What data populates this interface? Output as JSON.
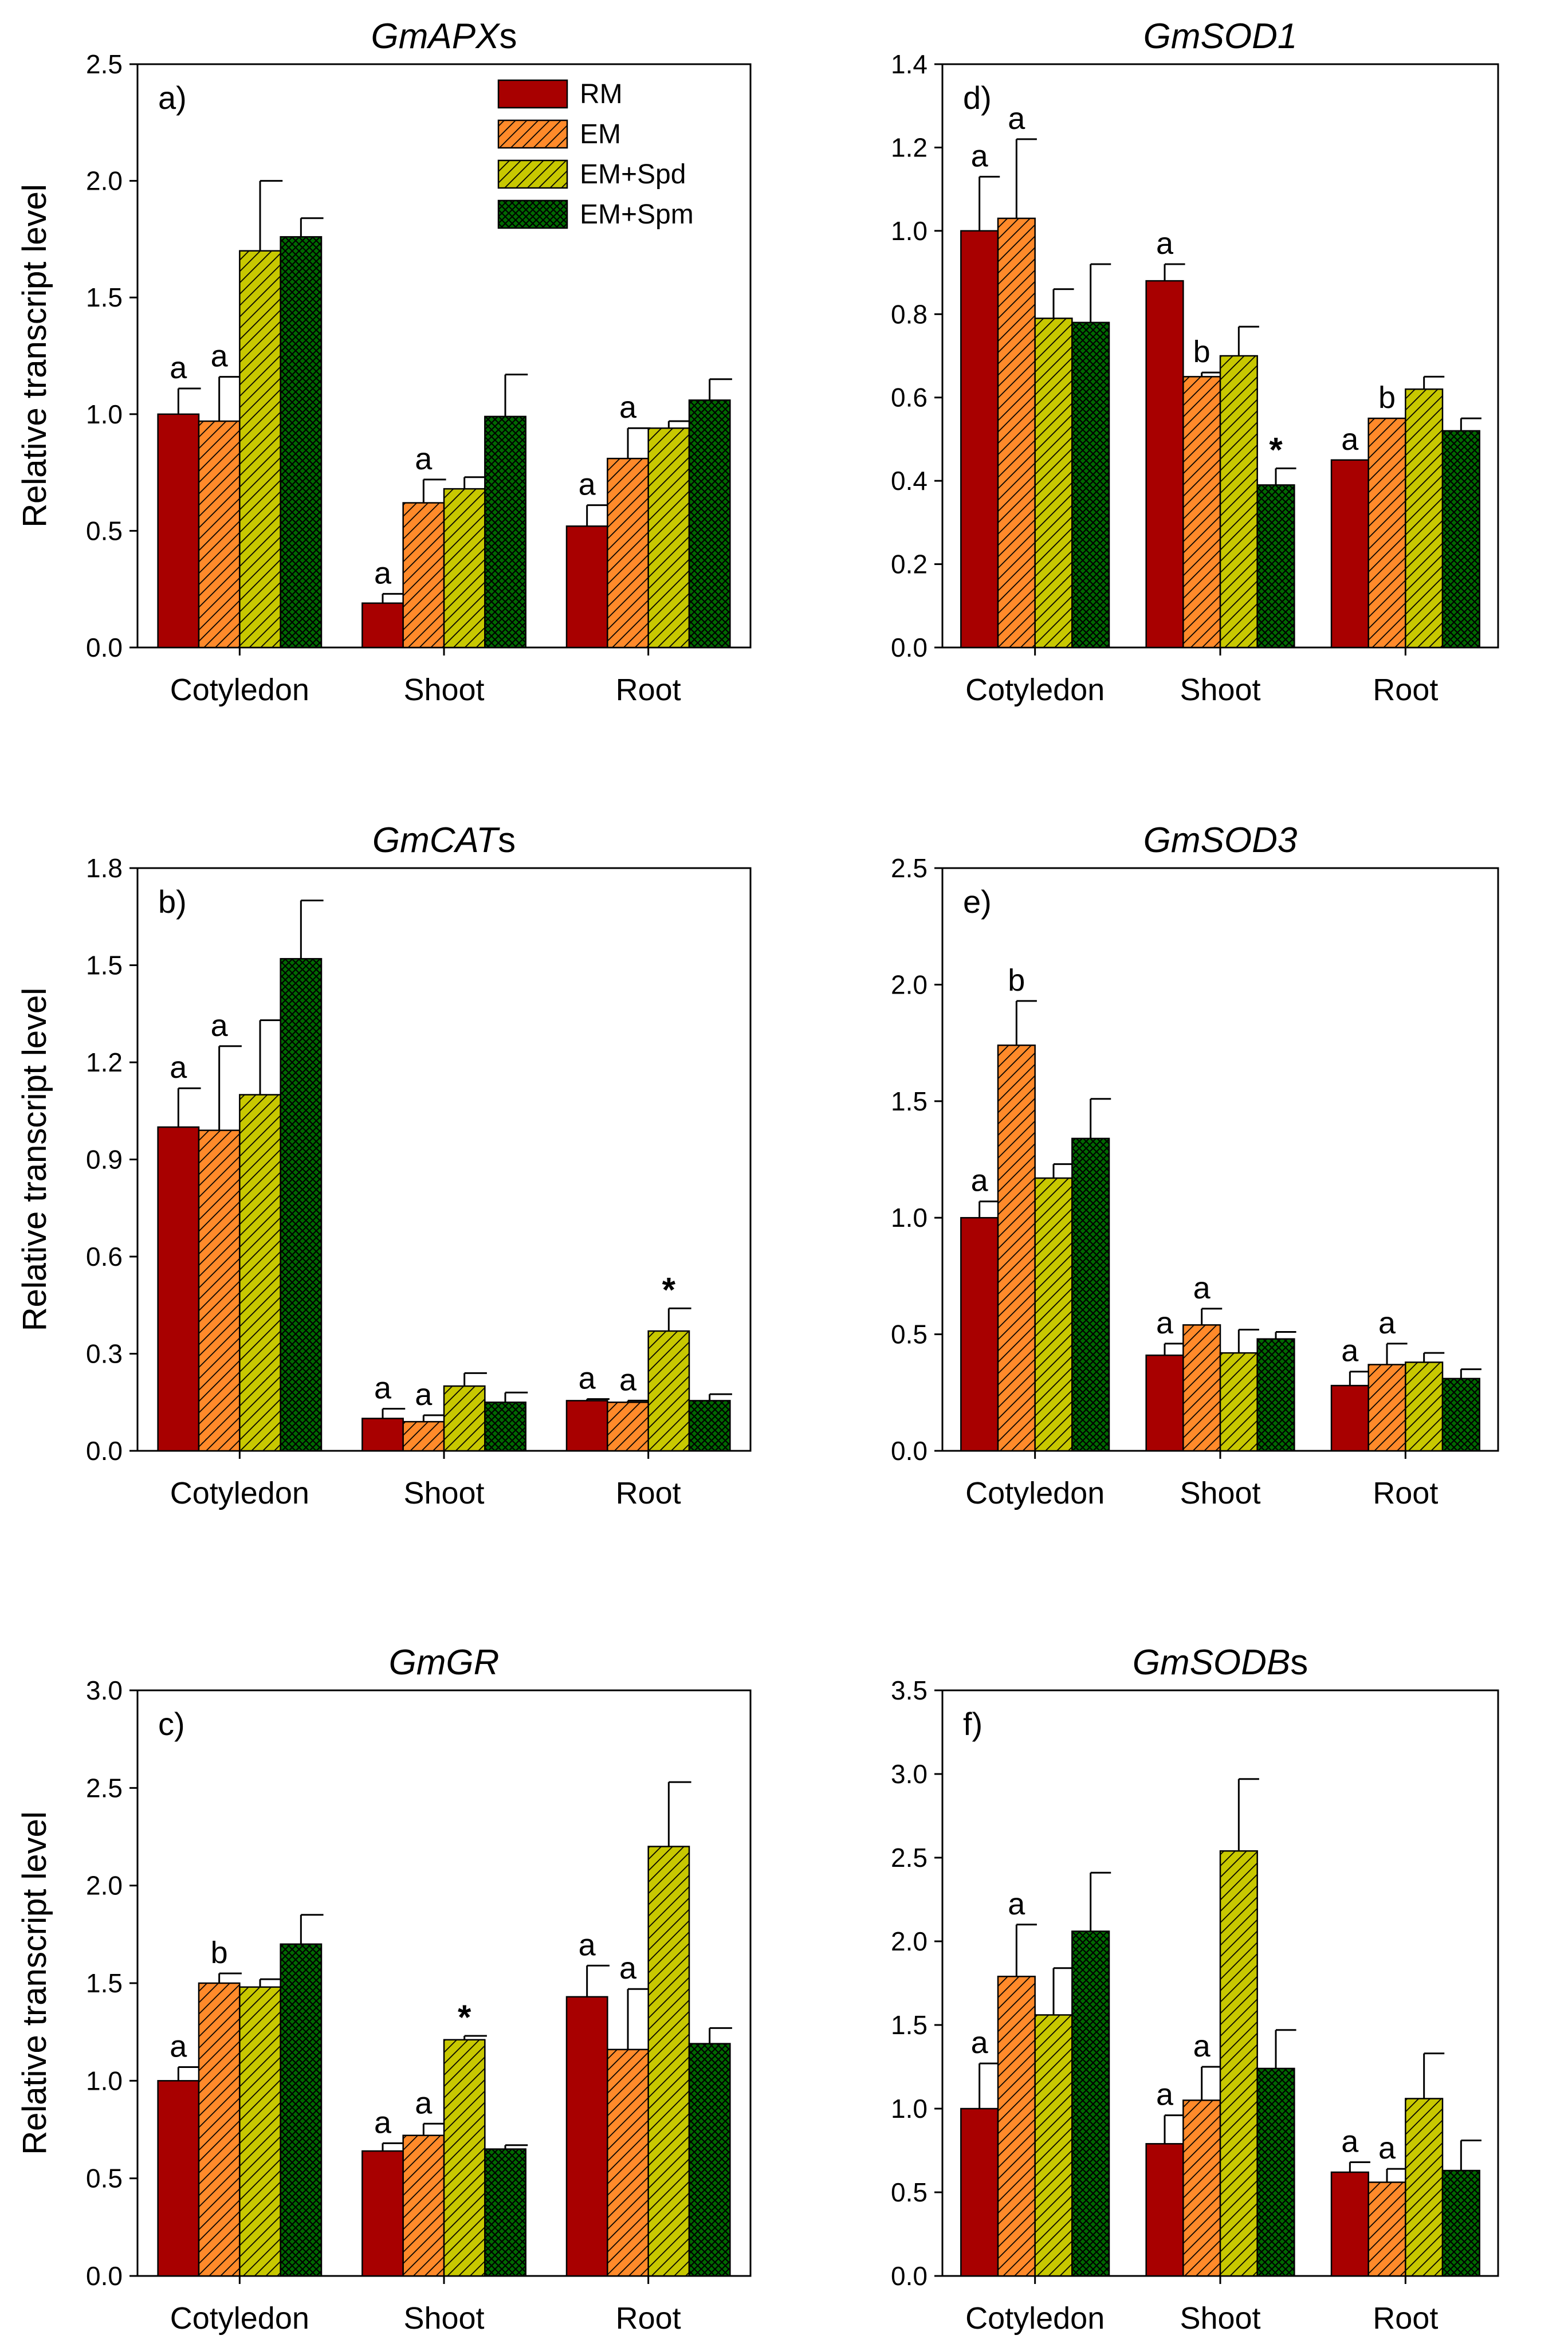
{
  "figure": {
    "ylabel": "Relative transcript level",
    "categories": [
      "Cotyledon",
      "Shoot",
      "Root"
    ],
    "legend": [
      {
        "name": "RM",
        "color": "#a80000",
        "pattern": "solid"
      },
      {
        "name": "EM",
        "color": "#ff8a2a",
        "pattern": "diag"
      },
      {
        "name": "EM+Spd",
        "color": "#c8c800",
        "pattern": "diag"
      },
      {
        "name": "EM+Spm",
        "color": "#006a00",
        "pattern": "cross"
      }
    ]
  },
  "chart_data": [
    {
      "type": "bar",
      "panel": "a)",
      "title_italic": "GmAPX",
      "title_suffix": "s",
      "categories": [
        "Cotyledon",
        "Shoot",
        "Root"
      ],
      "ylim": [
        0,
        2.5
      ],
      "yticks": [
        "0.0",
        "0.5",
        "1.0",
        "1.5",
        "2.0",
        "2.5"
      ],
      "series": [
        {
          "name": "RM",
          "values": [
            1.0,
            0.19,
            0.52
          ],
          "errors": [
            0.11,
            0.04,
            0.09
          ],
          "labels": [
            "a",
            "a",
            "a"
          ]
        },
        {
          "name": "EM",
          "values": [
            0.97,
            0.62,
            0.81
          ],
          "errors": [
            0.19,
            0.1,
            0.13
          ],
          "labels": [
            "a",
            "a",
            "a"
          ]
        },
        {
          "name": "EM+Spd",
          "values": [
            1.7,
            0.68,
            0.94
          ],
          "errors": [
            0.3,
            0.05,
            0.03
          ],
          "labels": [
            "",
            "",
            ""
          ]
        },
        {
          "name": "EM+Spm",
          "values": [
            1.76,
            0.99,
            1.06
          ],
          "errors": [
            0.08,
            0.18,
            0.09
          ],
          "labels": [
            "",
            "",
            ""
          ]
        }
      ]
    },
    {
      "type": "bar",
      "panel": "b)",
      "title_italic": "GmCAT",
      "title_suffix": "s",
      "categories": [
        "Cotyledon",
        "Shoot",
        "Root"
      ],
      "ylim": [
        0,
        1.8
      ],
      "yticks": [
        "0.0",
        "0.3",
        "0.6",
        "0.9",
        "1.2",
        "1.5",
        "1.8"
      ],
      "series": [
        {
          "name": "RM",
          "values": [
            1.0,
            0.1,
            0.155
          ],
          "errors": [
            0.12,
            0.03,
            0.005
          ],
          "labels": [
            "a",
            "a",
            "a"
          ]
        },
        {
          "name": "EM",
          "values": [
            0.99,
            0.09,
            0.15
          ],
          "errors": [
            0.26,
            0.02,
            0.005
          ],
          "labels": [
            "a",
            "a",
            "a"
          ]
        },
        {
          "name": "EM+Spd",
          "values": [
            1.1,
            0.2,
            0.37
          ],
          "errors": [
            0.23,
            0.04,
            0.07
          ],
          "labels": [
            "",
            "",
            "*"
          ]
        },
        {
          "name": "EM+Spm",
          "values": [
            1.52,
            0.15,
            0.155
          ],
          "errors": [
            0.18,
            0.03,
            0.02
          ],
          "labels": [
            "",
            "",
            ""
          ]
        }
      ]
    },
    {
      "type": "bar",
      "panel": "c)",
      "title_italic": "GmGR",
      "title_suffix": "",
      "categories": [
        "Cotyledon",
        "Shoot",
        "Root"
      ],
      "ylim": [
        0,
        3.0
      ],
      "yticks": [
        "0.0",
        "0.5",
        "1.0",
        "1.5",
        "2.0",
        "2.5",
        "3.0"
      ],
      "series": [
        {
          "name": "RM",
          "values": [
            1.0,
            0.64,
            1.43
          ],
          "errors": [
            0.07,
            0.04,
            0.16
          ],
          "labels": [
            "a",
            "a",
            "a"
          ]
        },
        {
          "name": "EM",
          "values": [
            1.5,
            0.72,
            1.16
          ],
          "errors": [
            0.05,
            0.06,
            0.31
          ],
          "labels": [
            "b",
            "a",
            "a"
          ]
        },
        {
          "name": "EM+Spd",
          "values": [
            1.48,
            1.21,
            2.2
          ],
          "errors": [
            0.04,
            0.02,
            0.33
          ],
          "labels": [
            "",
            "*",
            ""
          ]
        },
        {
          "name": "EM+Spm",
          "values": [
            1.7,
            0.65,
            1.19
          ],
          "errors": [
            0.15,
            0.02,
            0.08
          ],
          "labels": [
            "",
            "",
            ""
          ]
        }
      ]
    },
    {
      "type": "bar",
      "panel": "d)",
      "title_italic": "GmSOD1",
      "title_suffix": "",
      "categories": [
        "Cotyledon",
        "Shoot",
        "Root"
      ],
      "ylim": [
        0,
        1.4
      ],
      "yticks": [
        "0.0",
        "0.2",
        "0.4",
        "0.6",
        "0.8",
        "1.0",
        "1.2",
        "1.4"
      ],
      "series": [
        {
          "name": "RM",
          "values": [
            1.0,
            0.88,
            0.45
          ],
          "errors": [
            0.13,
            0.04,
            0.0
          ],
          "labels": [
            "a",
            "a",
            "a"
          ]
        },
        {
          "name": "EM",
          "values": [
            1.03,
            0.65,
            0.55
          ],
          "errors": [
            0.19,
            0.01,
            0.0
          ],
          "labels": [
            "a",
            "b",
            "b"
          ]
        },
        {
          "name": "EM+Spd",
          "values": [
            0.79,
            0.7,
            0.62
          ],
          "errors": [
            0.07,
            0.07,
            0.03
          ],
          "labels": [
            "",
            "",
            ""
          ]
        },
        {
          "name": "EM+Spm",
          "values": [
            0.78,
            0.39,
            0.52
          ],
          "errors": [
            0.14,
            0.04,
            0.03
          ],
          "labels": [
            "",
            "*",
            ""
          ]
        }
      ]
    },
    {
      "type": "bar",
      "panel": "e)",
      "title_italic": "GmSOD3",
      "title_suffix": "",
      "categories": [
        "Cotyledon",
        "Shoot",
        "Root"
      ],
      "ylim": [
        0,
        2.5
      ],
      "yticks": [
        "0.0",
        "0.5",
        "1.0",
        "1.5",
        "2.0",
        "2.5"
      ],
      "series": [
        {
          "name": "RM",
          "values": [
            1.0,
            0.41,
            0.28
          ],
          "errors": [
            0.07,
            0.05,
            0.06
          ],
          "labels": [
            "a",
            "a",
            "a"
          ]
        },
        {
          "name": "EM",
          "values": [
            1.74,
            0.54,
            0.37
          ],
          "errors": [
            0.19,
            0.07,
            0.09
          ],
          "labels": [
            "b",
            "a",
            "a"
          ]
        },
        {
          "name": "EM+Spd",
          "values": [
            1.17,
            0.42,
            0.38
          ],
          "errors": [
            0.06,
            0.1,
            0.04
          ],
          "labels": [
            "",
            "",
            ""
          ]
        },
        {
          "name": "EM+Spm",
          "values": [
            1.34,
            0.48,
            0.31
          ],
          "errors": [
            0.17,
            0.03,
            0.04
          ],
          "labels": [
            "",
            "",
            ""
          ]
        }
      ]
    },
    {
      "type": "bar",
      "panel": "f)",
      "title_italic": "GmSODB",
      "title_suffix": "s",
      "categories": [
        "Cotyledon",
        "Shoot",
        "Root"
      ],
      "ylim": [
        0,
        3.5
      ],
      "yticks": [
        "0.0",
        "0.5",
        "1.0",
        "1.5",
        "2.0",
        "2.5",
        "3.0",
        "3.5"
      ],
      "series": [
        {
          "name": "RM",
          "values": [
            1.0,
            0.79,
            0.62
          ],
          "errors": [
            0.27,
            0.17,
            0.06
          ],
          "labels": [
            "a",
            "a",
            "a"
          ]
        },
        {
          "name": "EM",
          "values": [
            1.79,
            1.05,
            0.56
          ],
          "errors": [
            0.31,
            0.2,
            0.08
          ],
          "labels": [
            "a",
            "a",
            "a"
          ]
        },
        {
          "name": "EM+Spd",
          "values": [
            1.56,
            2.54,
            1.06
          ],
          "errors": [
            0.28,
            0.43,
            0.27
          ],
          "labels": [
            "",
            "",
            ""
          ]
        },
        {
          "name": "EM+Spm",
          "values": [
            2.06,
            1.24,
            0.63
          ],
          "errors": [
            0.35,
            0.23,
            0.18
          ],
          "labels": [
            "",
            "",
            ""
          ]
        }
      ]
    }
  ]
}
